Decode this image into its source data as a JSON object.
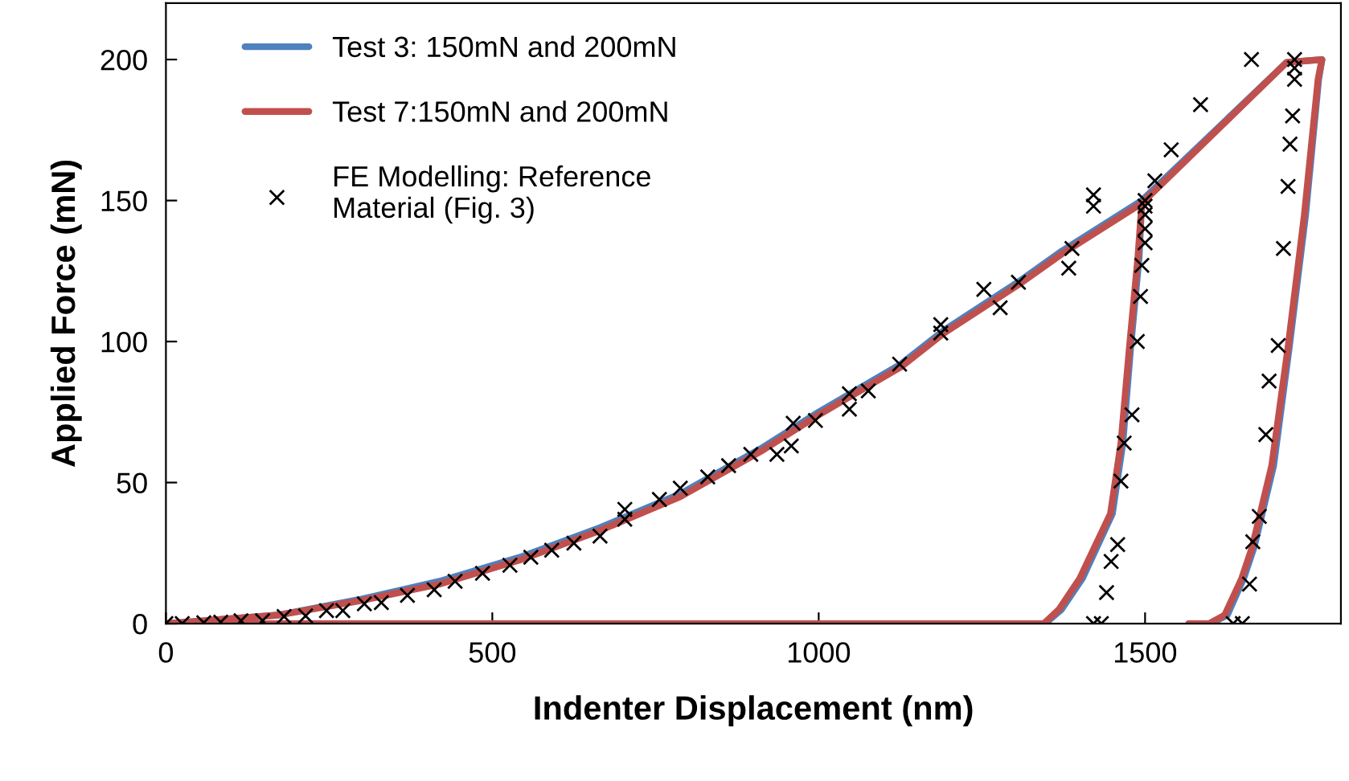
{
  "chart_data": {
    "type": "line",
    "xlabel": "Indenter Displacement (nm)",
    "ylabel": "Applied Force (mN)",
    "xlim": [
      0,
      1800
    ],
    "xticks": [
      0,
      500,
      1000,
      1500
    ],
    "ylim": [
      0,
      220
    ],
    "yticks": [
      0,
      50,
      100,
      150,
      200
    ],
    "grid": false,
    "legend": "top left",
    "series": [
      {
        "name": "Test 3: 150mN and 200mN",
        "color": "#4f81bd",
        "marker": "none",
        "line_style": "solid",
        "x": [
          0,
          172,
          296,
          419,
          542,
          665,
          788,
          911,
          1000,
          1126,
          1192,
          1305,
          1372,
          1495,
          1491,
          1478,
          1466,
          1450,
          1404,
          1372,
          1347,
          0,
          172,
          296,
          419,
          542,
          665,
          788,
          911,
          1000,
          1126,
          1192,
          1305,
          1372,
          1495,
          1717,
          1771,
          1766,
          1746,
          1721,
          1697,
          1667,
          1651,
          1626,
          1601,
          1567
        ],
        "values": [
          0,
          3,
          8.5,
          15,
          23.5,
          34,
          46,
          62,
          75,
          92,
          104,
          121,
          132,
          150,
          130,
          98,
          64,
          39,
          16,
          5,
          0,
          0,
          3,
          8.5,
          15,
          23.5,
          34,
          46,
          62,
          75,
          92,
          104,
          121,
          132,
          150,
          199,
          200,
          193,
          145,
          98,
          56,
          27,
          16,
          3,
          0,
          0
        ]
      },
      {
        "name": "Test 7:150mN and 200mN",
        "color": "#c0504d",
        "marker": "none",
        "line_style": "solid",
        "x": [
          0,
          172,
          296,
          419,
          542,
          665,
          788,
          911,
          1000,
          1126,
          1192,
          1305,
          1372,
          1495,
          1489,
          1476,
          1463,
          1447,
          1400,
          1368,
          1345,
          0,
          172,
          296,
          419,
          542,
          665,
          788,
          911,
          1000,
          1126,
          1192,
          1305,
          1372,
          1495,
          1717,
          1771,
          1765,
          1744,
          1719,
          1694,
          1664,
          1648,
          1622,
          1598,
          1567
        ],
        "values": [
          0,
          3,
          8,
          14,
          22.5,
          33,
          45,
          61,
          74,
          91,
          103,
          120,
          131,
          149,
          130,
          98,
          64,
          39,
          16,
          5,
          0,
          0,
          3,
          8,
          14,
          22.5,
          33,
          45,
          61,
          74,
          91,
          103,
          120,
          131,
          149,
          199,
          200,
          193,
          145,
          98,
          56,
          27,
          16,
          3,
          0,
          0
        ]
      },
      {
        "name": "FE Modelling: Reference\nMaterial (Fig. 3)",
        "type": "scatter",
        "color": "#000000",
        "marker": "cross",
        "x": [
          0,
          25,
          58,
          84,
          115,
          148,
          181,
          214,
          246,
          271,
          304,
          330,
          370,
          411,
          443,
          485,
          527,
          559,
          591,
          625,
          665,
          703,
          703,
          756,
          788,
          830,
          862,
          896,
          936,
          958,
          961,
          995,
          1047,
          1047,
          1076,
          1124,
          1187,
          1187,
          1253,
          1278,
          1306,
          1383,
          1388,
          1421,
          1421,
          1500,
          1500,
          1500,
          1500,
          1500,
          1495,
          1493,
          1488,
          1480,
          1468,
          1463,
          1458,
          1448,
          1441,
          1421,
          1433,
          1515,
          1540,
          1585,
          1663,
          1729,
          1729,
          1729,
          1726,
          1722,
          1719,
          1712,
          1704,
          1690,
          1685,
          1675,
          1665,
          1660,
          1635,
          1649
        ],
        "values": [
          0,
          0,
          0.3,
          0.5,
          1,
          1,
          2.5,
          2.7,
          4.6,
          4.6,
          7,
          7.4,
          10,
          12,
          15,
          17.8,
          20.7,
          23.5,
          26,
          28.5,
          31,
          40.5,
          37,
          44,
          48,
          52,
          56,
          60,
          60,
          63,
          71,
          72,
          81.5,
          76,
          82.5,
          92,
          106,
          103,
          118.5,
          112,
          121,
          126,
          133,
          152,
          148,
          150,
          148,
          145,
          140,
          135,
          127,
          116,
          100,
          74,
          64,
          50.5,
          28,
          22,
          11,
          0,
          0,
          157,
          168,
          184,
          200,
          200,
          197,
          193,
          180,
          170,
          155,
          133,
          98.6,
          86,
          67,
          38,
          29,
          14,
          0,
          0
        ]
      }
    ]
  }
}
